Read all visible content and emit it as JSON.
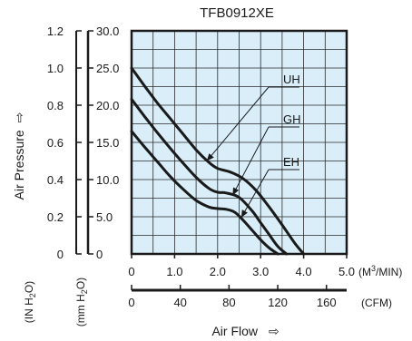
{
  "chart_data": {
    "type": "line",
    "title": "TFB0912XE",
    "xlabel": "Air Flow",
    "ylabel": "Air Pressure",
    "x_primary": {
      "unit": "(M³/MIN)",
      "range": [
        0,
        5.0
      ],
      "ticks": [
        "0",
        "1.0",
        "2.0",
        "3.0",
        "4.0",
        "5.0"
      ]
    },
    "x_secondary": {
      "unit": "(CFM)",
      "range": [
        0,
        176.6
      ],
      "ticks": [
        "0",
        "40",
        "80",
        "120",
        "160"
      ]
    },
    "y_primary": {
      "unit": "(mm H2O)",
      "range": [
        0,
        30.0
      ],
      "ticks": [
        "0",
        "5.0",
        "10.0",
        "15.0",
        "20.0",
        "25.0",
        "30.0"
      ]
    },
    "y_secondary": {
      "unit": "(IN H2O)",
      "range": [
        0,
        1.2
      ],
      "ticks": [
        "0",
        "0.2",
        "0.4",
        "0.6",
        "0.8",
        "1.0",
        "1.2"
      ]
    },
    "grid": true,
    "plot_background": "#daeefa",
    "series": [
      {
        "name": "UH",
        "x": [
          0,
          0.3,
          0.6,
          0.9,
          1.2,
          1.5,
          1.8,
          2.0,
          2.3,
          2.6,
          2.9,
          3.2,
          3.5,
          3.8,
          4.0
        ],
        "y": [
          25.0,
          22.6,
          20.3,
          18.2,
          16.1,
          14.0,
          12.3,
          11.5,
          11.0,
          10.1,
          8.5,
          6.3,
          3.9,
          1.4,
          0
        ]
      },
      {
        "name": "GH",
        "x": [
          0,
          0.3,
          0.6,
          0.9,
          1.2,
          1.5,
          1.8,
          2.0,
          2.2,
          2.5,
          2.8,
          3.0,
          3.2,
          3.4,
          3.6
        ],
        "y": [
          20.8,
          18.5,
          16.3,
          14.2,
          12.2,
          10.3,
          8.8,
          8.3,
          8.2,
          7.6,
          5.8,
          4.2,
          2.6,
          1.0,
          0
        ]
      },
      {
        "name": "EH",
        "x": [
          0,
          0.3,
          0.6,
          0.9,
          1.2,
          1.5,
          1.8,
          2.0,
          2.2,
          2.4,
          2.6,
          2.8,
          3.0,
          3.2,
          3.4
        ],
        "y": [
          16.5,
          14.4,
          12.4,
          10.4,
          8.7,
          7.2,
          6.3,
          6.1,
          6.0,
          5.6,
          4.5,
          3.2,
          1.9,
          0.8,
          0
        ]
      }
    ],
    "annotations": [
      {
        "text": "UH",
        "series": "UH",
        "point_x": 1.75,
        "point_y": 12.5
      },
      {
        "text": "GH",
        "series": "GH",
        "point_x": 2.35,
        "point_y": 7.9
      },
      {
        "text": "EH",
        "series": "EH",
        "point_x": 2.55,
        "point_y": 4.9
      }
    ],
    "axis_arrows": {
      "y": "⇨",
      "x": "⇨"
    }
  }
}
